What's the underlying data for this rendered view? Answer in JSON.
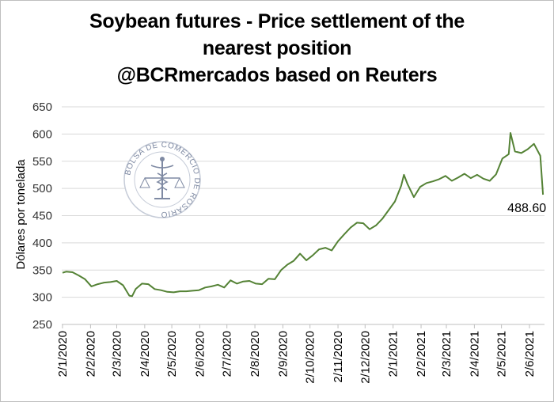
{
  "chart_data": {
    "type": "line",
    "title": [
      "Soybean futures - Price settlement of the",
      "nearest position",
      "@BCRmercados based on Reuters"
    ],
    "ylabel": "Dólares por tonelada",
    "xlabel": "",
    "ylim": [
      250,
      650
    ],
    "yticks": [
      250,
      300,
      350,
      400,
      450,
      500,
      550,
      600,
      650
    ],
    "xticks": [
      "2/1/2020",
      "2/2/2020",
      "2/3/2020",
      "2/4/2020",
      "2/5/2020",
      "2/6/2020",
      "2/7/2020",
      "2/8/2020",
      "2/9/2020",
      "2/10/2020",
      "2/11/2020",
      "2/12/2020",
      "2/1/2021",
      "2/2/2021",
      "2/3/2021",
      "2/4/2021",
      "2/5/2021",
      "2/6/2021"
    ],
    "grid": "horizontal",
    "line_color": "#548235",
    "series": [
      {
        "x": [
          "2/1/2020",
          "6/1/2020",
          "13/1/2020",
          "20/1/2020",
          "27/1/2020",
          "3/2/2020",
          "10/2/2020",
          "17/2/2020",
          "24/2/2020",
          "2/3/2020",
          "9/3/2020",
          "16/3/2020",
          "19/3/2020",
          "23/3/2020",
          "30/3/2020",
          "6/4/2020",
          "13/4/2020",
          "20/4/2020",
          "27/4/2020",
          "4/5/2020",
          "11/5/2020",
          "18/5/2020",
          "25/5/2020",
          "1/6/2020",
          "8/6/2020",
          "15/6/2020",
          "22/6/2020",
          "29/6/2020",
          "6/7/2020",
          "13/7/2020",
          "20/7/2020",
          "27/7/2020",
          "3/8/2020",
          "10/8/2020",
          "17/8/2020",
          "24/8/2020",
          "31/8/2020",
          "7/9/2020",
          "14/9/2020",
          "21/9/2020",
          "28/9/2020",
          "5/10/2020",
          "12/10/2020",
          "19/10/2020",
          "26/10/2020",
          "2/11/2020",
          "9/11/2020",
          "16/11/2020",
          "23/11/2020",
          "30/11/2020",
          "7/12/2020",
          "14/12/2020",
          "21/12/2020",
          "28/12/2020",
          "4/1/2021",
          "11/1/2021",
          "14/1/2021",
          "18/1/2021",
          "25/1/2021",
          "1/2/2021",
          "8/2/2021",
          "15/2/2021",
          "22/2/2021",
          "1/3/2021",
          "8/3/2021",
          "15/3/2021",
          "22/3/2021",
          "29/3/2021",
          "5/4/2021",
          "12/4/2021",
          "19/4/2021",
          "26/4/2021",
          "3/5/2021",
          "10/5/2021",
          "12/5/2021",
          "17/5/2021",
          "24/5/2021",
          "31/5/2021",
          "7/6/2021",
          "14/6/2021",
          "17/6/2021"
        ],
        "values": [
          345,
          347,
          346,
          340,
          333,
          320,
          324,
          327,
          328,
          330,
          322,
          303,
          302,
          315,
          325,
          324,
          315,
          313,
          310,
          309,
          311,
          311,
          312,
          313,
          318,
          320,
          323,
          318,
          331,
          325,
          329,
          330,
          325,
          324,
          334,
          333,
          350,
          360,
          367,
          380,
          368,
          377,
          388,
          391,
          386,
          403,
          416,
          428,
          437,
          436,
          425,
          432,
          444,
          460,
          476,
          505,
          525,
          508,
          484,
          503,
          510,
          513,
          517,
          523,
          514,
          520,
          527,
          519,
          525,
          518,
          514,
          526,
          555,
          563,
          602,
          568,
          565,
          572,
          582,
          560,
          488.6
        ]
      }
    ],
    "annotations": [
      {
        "label": "488.60",
        "x": "17/6/2021",
        "y": 488.6
      }
    ]
  },
  "logo": {
    "name": "bcr-seal",
    "text": "BOLSA DE COMERCIO DE ROSARIO"
  }
}
